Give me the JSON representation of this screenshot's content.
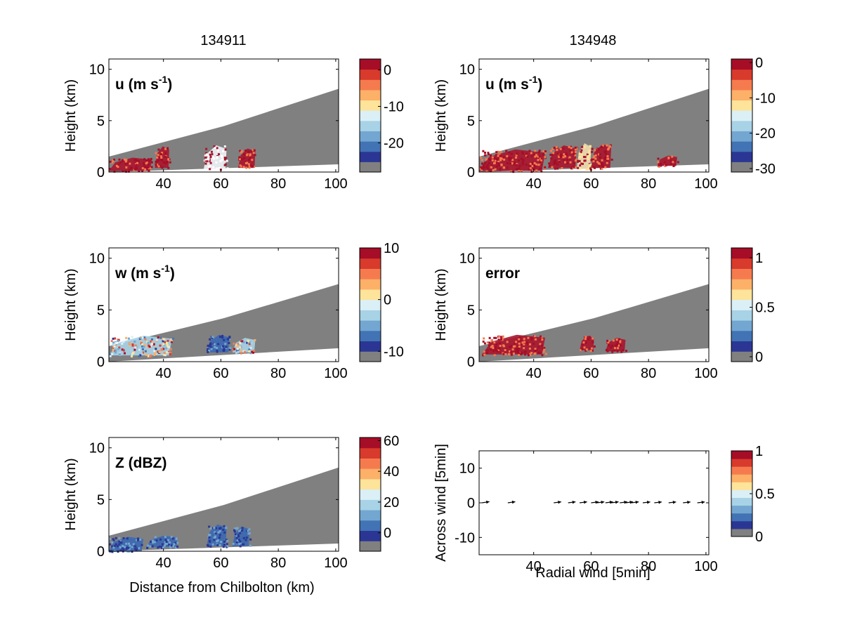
{
  "colors": {
    "background": "#ffffff",
    "missing": "#808080",
    "palette": [
      "#2b3694",
      "#4273b4",
      "#73a7d1",
      "#a8d2e6",
      "#dbf0f6",
      "#fde49a",
      "#fdb068",
      "#f57b4e",
      "#d83a2c",
      "#a60d27"
    ],
    "data_red": "#a8142c",
    "data_white": "#f0f3f7",
    "data_blue": "#3a68b0",
    "data_beige": "#f1dcae"
  },
  "chart_data": [
    {
      "type": "heatmap",
      "time_label": "134911",
      "field_label": "u (m s",
      "field_exponent": "-1",
      "field_close": ")",
      "ylabel": "Height (km)",
      "xlabel": "",
      "xlim": [
        21,
        101
      ],
      "ylim": [
        0,
        11
      ],
      "xticks": [
        "40",
        "60",
        "80",
        "100"
      ],
      "yticks": [
        "0",
        "5",
        "10"
      ],
      "colorbar": {
        "min": -28,
        "max": 3,
        "ticks": [
          "0",
          "-10",
          "-20"
        ]
      },
      "echo_regions": [
        {
          "x": [
            21,
            36
          ],
          "y": [
            0.1,
            1.4
          ],
          "fill": "red"
        },
        {
          "x": [
            37,
            42
          ],
          "y": [
            0.4,
            2.5
          ],
          "fill": "red"
        },
        {
          "x": [
            54,
            62
          ],
          "y": [
            0.3,
            2.6
          ],
          "fill": "white"
        },
        {
          "x": [
            66,
            72
          ],
          "y": [
            0.4,
            2.3
          ],
          "fill": "red"
        }
      ]
    },
    {
      "type": "heatmap",
      "time_label": "134948",
      "field_label": "u (m s",
      "field_exponent": "-1",
      "field_close": ")",
      "ylabel": "Height (km)",
      "xlabel": "",
      "xlim": [
        21,
        101
      ],
      "ylim": [
        0,
        11
      ],
      "xticks": [
        "40",
        "60",
        "80",
        "100"
      ],
      "yticks": [
        "0",
        "5",
        "10"
      ],
      "colorbar": {
        "min": -31,
        "max": 1,
        "ticks": [
          "0",
          "-10",
          "-20",
          "-30"
        ]
      },
      "echo_regions": [
        {
          "x": [
            21,
            44
          ],
          "y": [
            0.1,
            2.2
          ],
          "fill": "red"
        },
        {
          "x": [
            45,
            55
          ],
          "y": [
            0.4,
            2.6
          ],
          "fill": "red"
        },
        {
          "x": [
            55,
            60
          ],
          "y": [
            0.3,
            2.8
          ],
          "fill": "beige"
        },
        {
          "x": [
            60,
            67
          ],
          "y": [
            0.4,
            2.7
          ],
          "fill": "red"
        },
        {
          "x": [
            83,
            90
          ],
          "y": [
            0.6,
            1.6
          ],
          "fill": "red"
        }
      ]
    },
    {
      "type": "heatmap",
      "field_label": "w (m s",
      "field_exponent": "-1",
      "field_close": ")",
      "ylabel": "Height (km)",
      "xlabel": "",
      "xlim": [
        21,
        101
      ],
      "ylim": [
        0,
        11
      ],
      "xticks": [
        "40",
        "60",
        "80",
        "100"
      ],
      "yticks": [
        "0",
        "5",
        "10"
      ],
      "colorbar": {
        "min": -12,
        "max": 10,
        "ticks": [
          "10",
          "0",
          "-10"
        ]
      },
      "echo_regions": [
        {
          "x": [
            21,
            43
          ],
          "y": [
            0.6,
            2.5
          ],
          "fill": "mixed"
        },
        {
          "x": [
            55,
            63
          ],
          "y": [
            0.9,
            2.6
          ],
          "fill": "blue"
        },
        {
          "x": [
            64,
            72
          ],
          "y": [
            0.9,
            2.3
          ],
          "fill": "mixed"
        }
      ]
    },
    {
      "type": "heatmap",
      "field_label": "error",
      "ylabel": "Height (km)",
      "xlabel": "",
      "xlim": [
        21,
        101
      ],
      "ylim": [
        0,
        11
      ],
      "xticks": [
        "40",
        "60",
        "80",
        "100"
      ],
      "yticks": [
        "0",
        "5",
        "10"
      ],
      "colorbar": {
        "min": -0.05,
        "max": 1.1,
        "ticks": [
          "1",
          "0.5",
          "0"
        ]
      },
      "echo_regions": [
        {
          "x": [
            22,
            44
          ],
          "y": [
            0.7,
            2.6
          ],
          "fill": "red"
        },
        {
          "x": [
            56,
            61
          ],
          "y": [
            1.1,
            2.5
          ],
          "fill": "red"
        },
        {
          "x": [
            65,
            72
          ],
          "y": [
            1.0,
            2.3
          ],
          "fill": "red"
        }
      ]
    },
    {
      "type": "heatmap",
      "field_label": "Z (dBZ)",
      "ylabel": "Height (km)",
      "xlabel": "Distance from Chilbolton (km)",
      "xlim": [
        21,
        101
      ],
      "ylim": [
        0,
        11
      ],
      "xticks": [
        "40",
        "60",
        "80",
        "100"
      ],
      "yticks": [
        "0",
        "5",
        "10"
      ],
      "colorbar": {
        "min": -12,
        "max": 62,
        "ticks": [
          "60",
          "40",
          "20",
          "0"
        ]
      },
      "echo_regions": [
        {
          "x": [
            21,
            33
          ],
          "y": [
            0.0,
            1.4
          ],
          "fill": "blue"
        },
        {
          "x": [
            34,
            45
          ],
          "y": [
            0.4,
            1.5
          ],
          "fill": "blue"
        },
        {
          "x": [
            55,
            62
          ],
          "y": [
            0.5,
            2.6
          ],
          "fill": "blue"
        },
        {
          "x": [
            64,
            70
          ],
          "y": [
            0.5,
            2.4
          ],
          "fill": "blue"
        }
      ]
    },
    {
      "type": "scatter",
      "field_label": "",
      "ylabel": "Across wind [5min]",
      "xlabel": "Radial wind [5min]",
      "xlim": [
        21,
        101
      ],
      "ylim": [
        -15,
        15
      ],
      "xticks": [
        "40",
        "60",
        "80",
        "100"
      ],
      "yticks": [
        "10",
        "0",
        "-10"
      ],
      "colorbar": {
        "min": 0,
        "max": 1,
        "ticks": [
          "1",
          "0.5",
          "0"
        ]
      },
      "vectors": [
        {
          "x": 22,
          "y": 0,
          "dx": 2.6,
          "dy": 1.2
        },
        {
          "x": 31,
          "y": 0,
          "dx": 2.6,
          "dy": 1.1
        },
        {
          "x": 47,
          "y": 0,
          "dx": 2.6,
          "dy": 1.0
        },
        {
          "x": 52,
          "y": 0,
          "dx": 2.6,
          "dy": 1.0
        },
        {
          "x": 56,
          "y": 0,
          "dx": 2.6,
          "dy": 1.0
        },
        {
          "x": 60,
          "y": 0,
          "dx": 2.6,
          "dy": 1.0
        },
        {
          "x": 62,
          "y": 0,
          "dx": 2.6,
          "dy": 1.0
        },
        {
          "x": 65,
          "y": 0,
          "dx": 2.6,
          "dy": 1.0
        },
        {
          "x": 67,
          "y": 0,
          "dx": 2.6,
          "dy": 1.0
        },
        {
          "x": 70,
          "y": 0,
          "dx": 2.6,
          "dy": 1.0
        },
        {
          "x": 72,
          "y": 0,
          "dx": 2.6,
          "dy": 1.0
        },
        {
          "x": 74,
          "y": 0,
          "dx": 2.6,
          "dy": 1.0
        },
        {
          "x": 78,
          "y": 0,
          "dx": 2.6,
          "dy": 0.9
        },
        {
          "x": 82,
          "y": 0,
          "dx": 2.6,
          "dy": 0.9
        },
        {
          "x": 87,
          "y": 0,
          "dx": 2.6,
          "dy": 0.9
        },
        {
          "x": 92,
          "y": 0,
          "dx": 2.6,
          "dy": 0.9
        },
        {
          "x": 97,
          "y": 0,
          "dx": 2.6,
          "dy": 0.9
        }
      ]
    }
  ]
}
